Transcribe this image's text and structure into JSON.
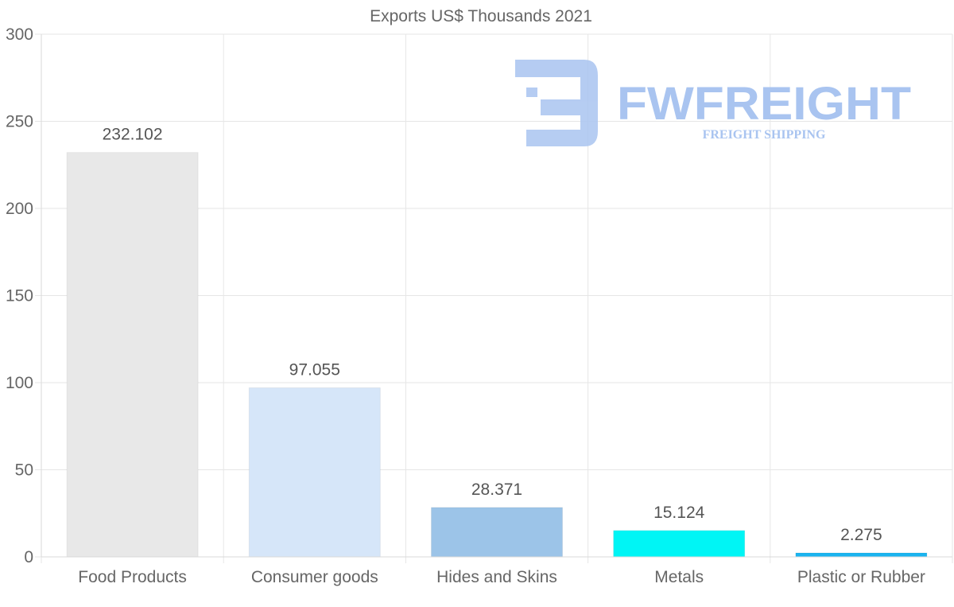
{
  "chart_data": {
    "type": "bar",
    "title": "Exports US$ Thousands 2021",
    "categories": [
      "Food Products",
      "Consumer goods",
      "Hides and Skins",
      "Metals",
      "Plastic or Rubber"
    ],
    "values": [
      232.102,
      97.055,
      28.371,
      15.124,
      2.275
    ],
    "data_labels": [
      "232.102",
      "97.055",
      "28.371",
      "15.124",
      "2.275"
    ],
    "bar_colors": [
      "#e8e8e8",
      "#d6e6f9",
      "#9cc4e8",
      "#00f5f5",
      "#1ab4f0"
    ],
    "ylim": [
      0,
      300
    ],
    "yticks": [
      0,
      50,
      100,
      150,
      200,
      250,
      300
    ],
    "xlabel": "",
    "ylabel": "",
    "grid": true
  },
  "watermark": {
    "brand": "FWFREIGHT",
    "tagline": "FREIGHT SHIPPING",
    "color": "#a9c4f0"
  }
}
